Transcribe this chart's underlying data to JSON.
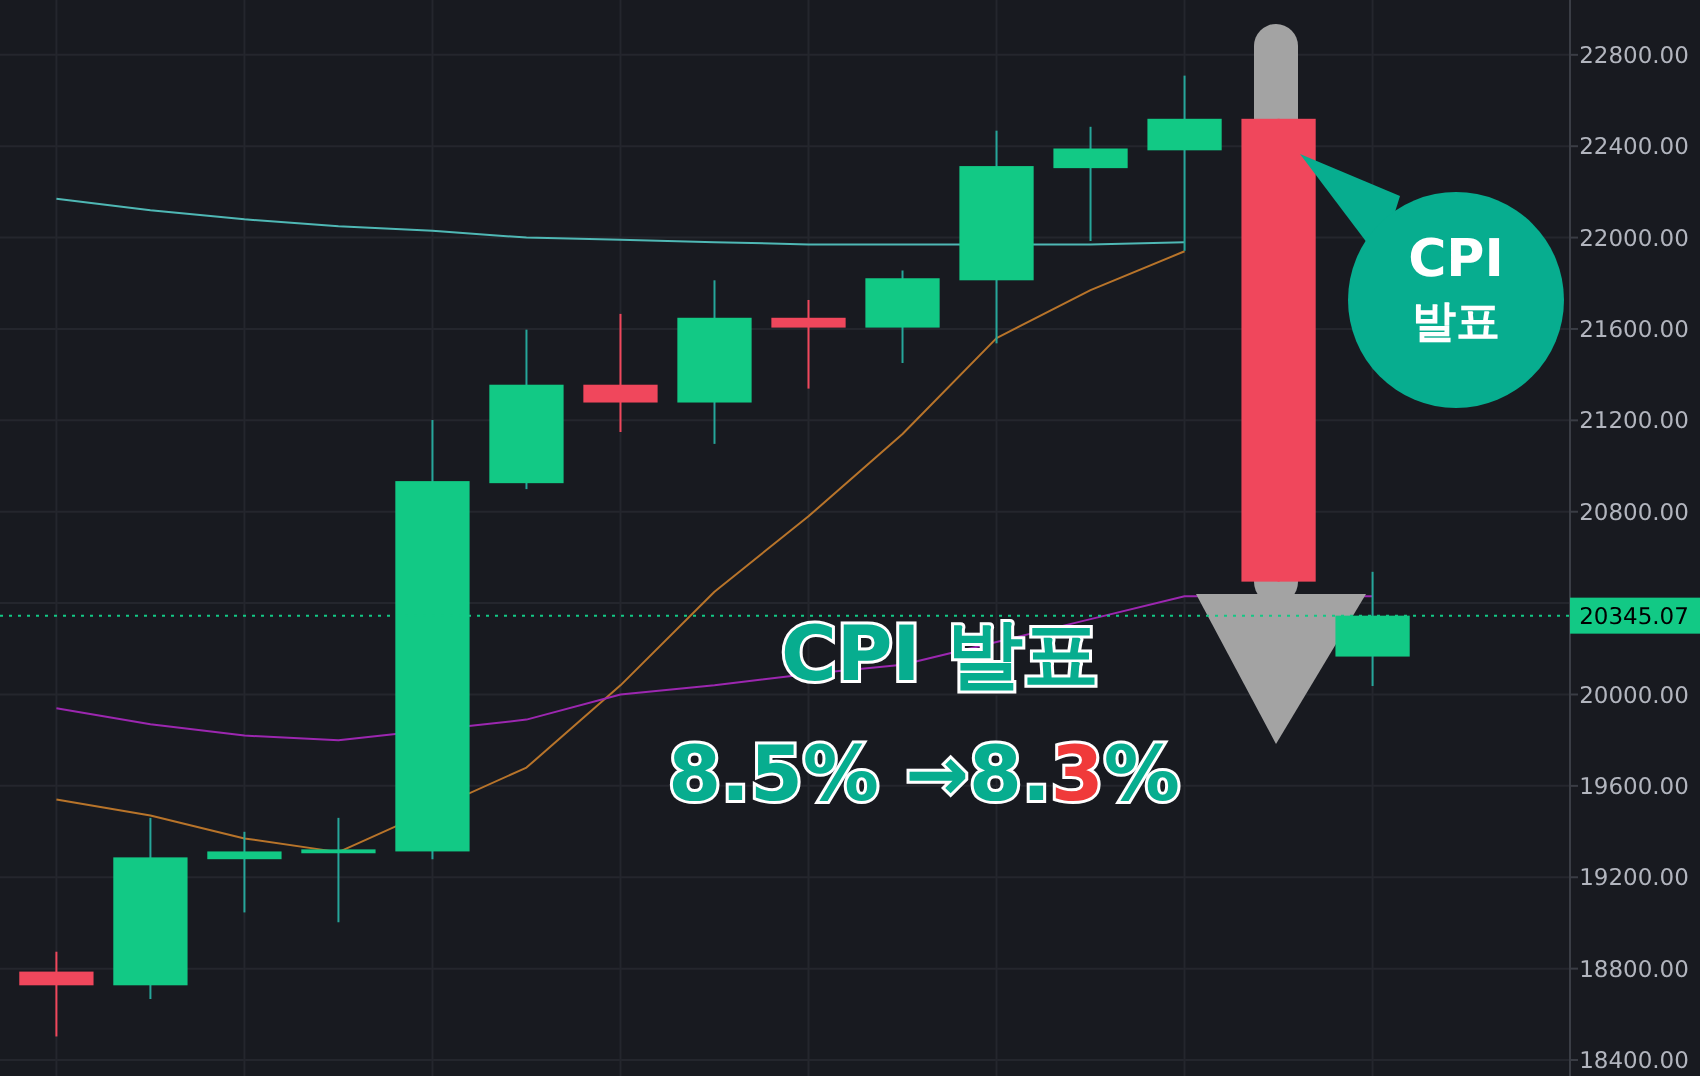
{
  "chart_data": {
    "type": "candlestick",
    "categories": [
      null,
      null,
      null,
      null,
      null,
      null,
      null,
      null,
      null,
      null,
      null,
      null,
      null,
      null,
      null
    ],
    "ohlc": [
      [
        18787,
        18874,
        18503,
        18727
      ],
      [
        18727,
        19460,
        18667,
        19287
      ],
      [
        19279,
        19399,
        19046,
        19313
      ],
      [
        19305,
        19460,
        19003,
        19322
      ],
      [
        19313,
        21201,
        19279,
        20934
      ],
      [
        20925,
        21597,
        20899,
        21356
      ],
      [
        21356,
        21666,
        21149,
        21278
      ],
      [
        21278,
        21813,
        21097,
        21649
      ],
      [
        21649,
        21727,
        21339,
        21606
      ],
      [
        21606,
        21856,
        21451,
        21822
      ],
      [
        21813,
        22468,
        21537,
        22313
      ],
      [
        22304,
        22485,
        21985,
        22390
      ],
      [
        22382,
        22709,
        21942,
        22520
      ],
      [
        22520,
        22520,
        20494,
        20494
      ],
      [
        20166,
        20537,
        20037,
        20345.07
      ]
    ],
    "colors": [
      "#f0475c",
      "#12c985",
      "#12c985",
      "#12c985",
      "#12c985",
      "#12c985",
      "#f0475c",
      "#12c985",
      "#f0475c",
      "#12c985",
      "#12c985",
      "#12c985",
      "#12c985",
      "#f0475c",
      "#12c985"
    ],
    "series": [
      {
        "type": "line",
        "color": "#4fb8b5",
        "values": [
          22170,
          22120,
          22080,
          22050,
          22030,
          22000,
          21990,
          21980,
          21970,
          21970,
          null,
          21970,
          21980,
          null,
          null
        ]
      },
      {
        "type": "line",
        "color": "#b8742a",
        "values": [
          19540,
          19470,
          19370,
          19310,
          null,
          19680,
          20040,
          20450,
          20780,
          21140,
          21560,
          21770,
          21940,
          null,
          null
        ]
      },
      {
        "type": "line",
        "color": "#9c27b0",
        "values": [
          19940,
          19870,
          19820,
          19800,
          null,
          19890,
          20000,
          20040,
          20090,
          20130,
          20230,
          20330,
          20430,
          null,
          20430
        ]
      }
    ],
    "ylim": [
      18330,
      23040
    ],
    "yticks": [
      {
        "value": 18400,
        "label": "18400.00"
      },
      {
        "value": 18800,
        "label": "18800.00"
      },
      {
        "value": 19200,
        "label": "19200.00"
      },
      {
        "value": 19600,
        "label": "19600.00"
      },
      {
        "value": 20000,
        "label": "20000.00"
      },
      {
        "value": 20400,
        "label": null
      },
      {
        "value": 20800,
        "label": "20800.00"
      },
      {
        "value": 21200,
        "label": "21200.00"
      },
      {
        "value": 21600,
        "label": "21600.00"
      },
      {
        "value": 22000,
        "label": "22000.00"
      },
      {
        "value": 22400,
        "label": "22400.00"
      },
      {
        "value": 22800,
        "label": "22800.00"
      }
    ],
    "ref_lines": [
      {
        "axis": "y",
        "value": 20345.07,
        "label": "20345.07",
        "color": "#12c985",
        "line_style": "dotted"
      }
    ],
    "grid": true,
    "tick_labels": "y",
    "annotations": [
      "CPI 발표",
      "CPI 발표",
      "8.5% →8.3%"
    ]
  }
}
